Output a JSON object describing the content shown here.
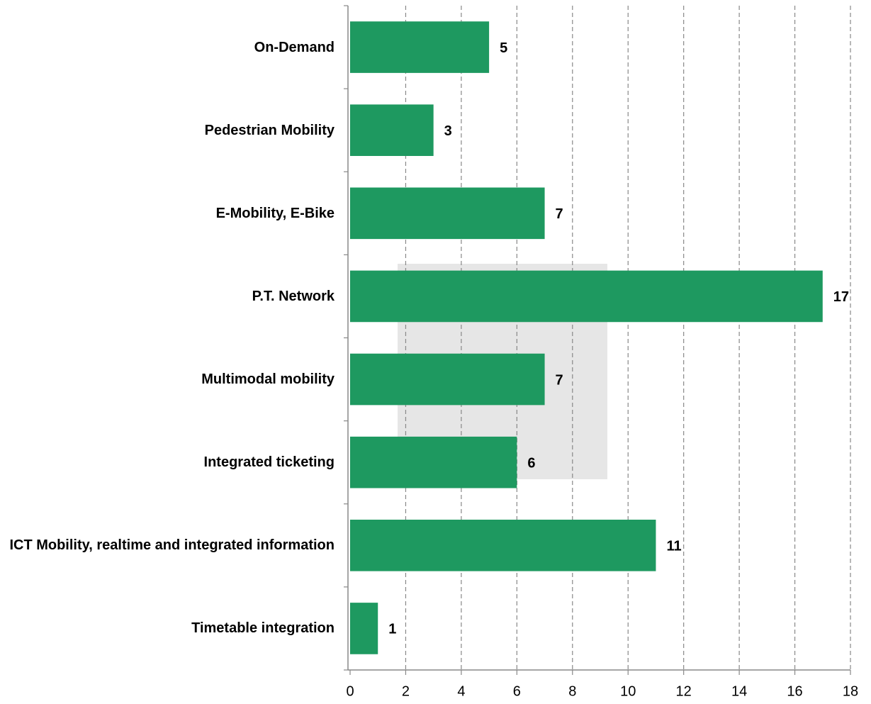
{
  "chart_data": {
    "type": "barh",
    "categories": [
      "On-Demand",
      "Pedestrian Mobility",
      "E-Mobility, E-Bike",
      "P.T. Network",
      "Multimodal mobility",
      "Integrated ticketing",
      "ICT Mobility, realtime and integrated information",
      "Timetable integration"
    ],
    "values": [
      5,
      3,
      7,
      17,
      7,
      6,
      11,
      1
    ],
    "color": "#1e9960",
    "xlim": [
      0,
      18
    ],
    "xticks": [
      0,
      2,
      4,
      6,
      8,
      10,
      12,
      14,
      16,
      18
    ],
    "grid": true
  }
}
